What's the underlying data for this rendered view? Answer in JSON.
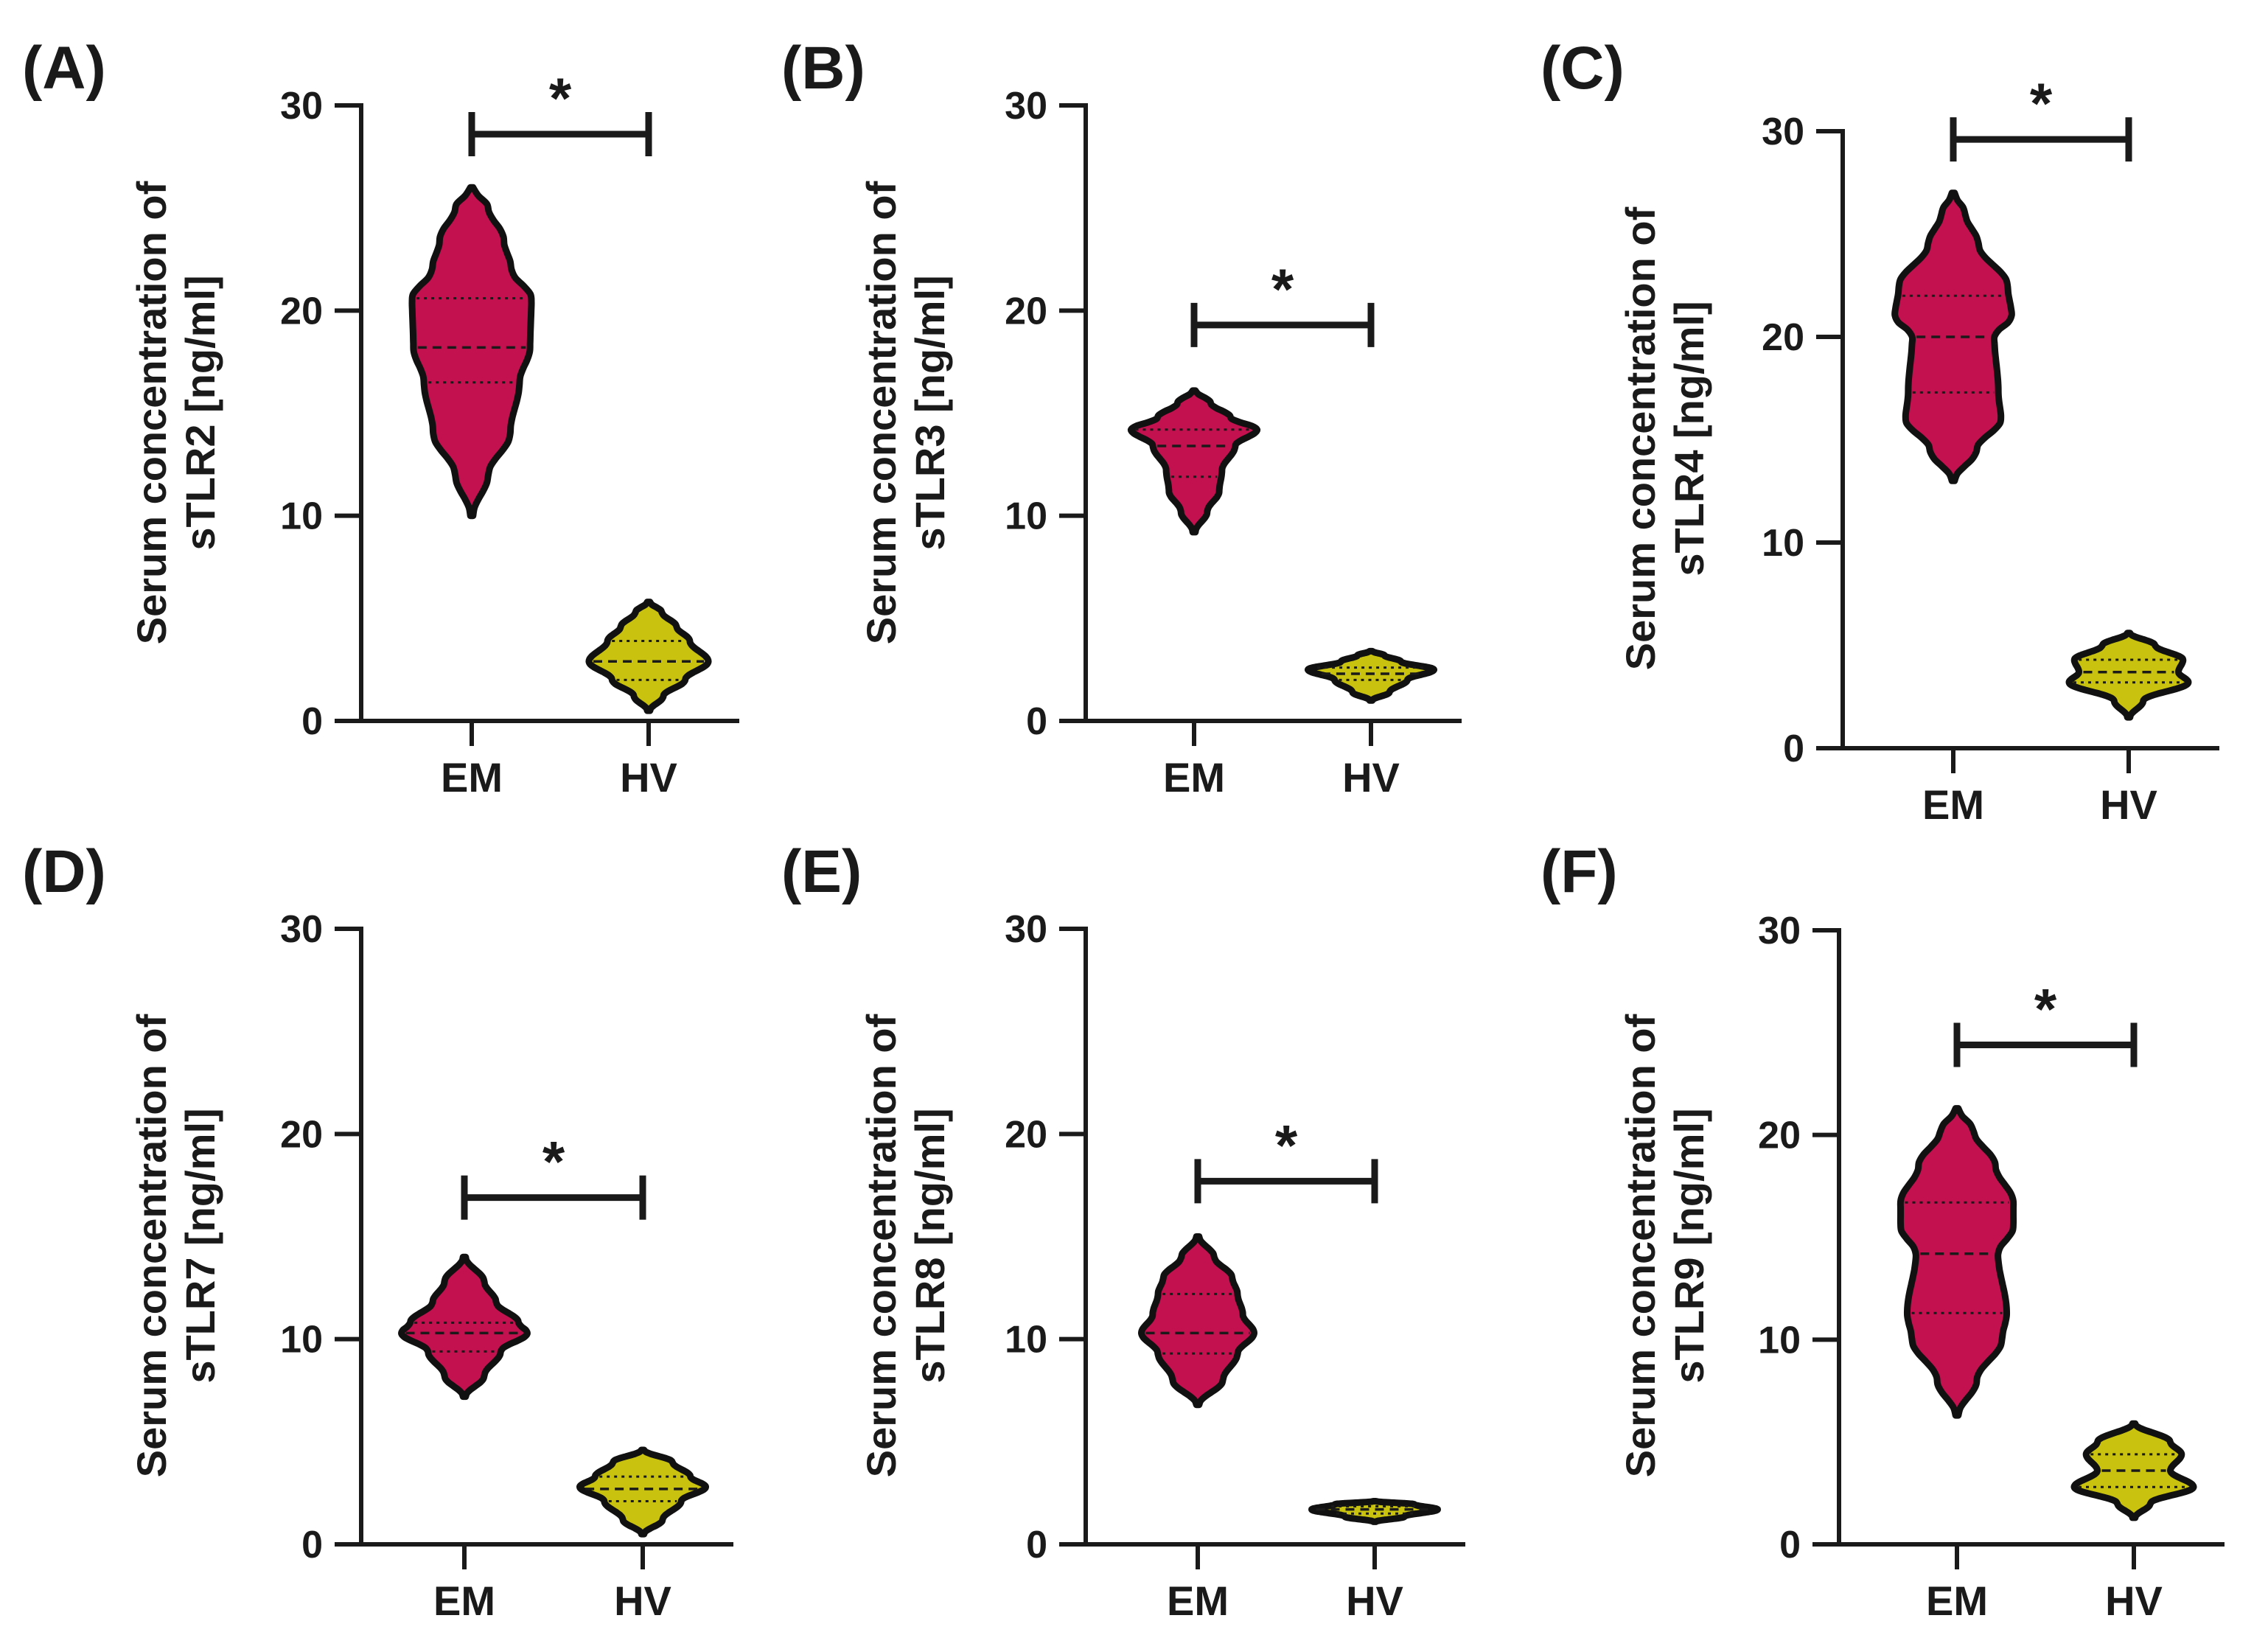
{
  "figure": {
    "colors": {
      "EM": "#C3104F",
      "HV": "#C9C30F",
      "ink": "#1a1a1a"
    }
  },
  "chart_data": [
    {
      "type": "violin",
      "panel_label": "(A)",
      "ylabel_line1": "Serum concentration of",
      "ylabel_line2": "sTLR2 [ng/ml]",
      "categories": [
        "EM",
        "HV"
      ],
      "ylim": [
        0,
        30
      ],
      "yticks": [
        0,
        10,
        20,
        30
      ],
      "series": [
        {
          "name": "EM",
          "min": 10,
          "max": 26,
          "q1": 16.5,
          "median": 18.2,
          "q3": 20.6,
          "shape": [
            [
              10,
              0.02
            ],
            [
              12,
              0.25
            ],
            [
              14,
              0.58
            ],
            [
              16.5,
              0.72
            ],
            [
              18.2,
              0.88
            ],
            [
              20.6,
              0.9
            ],
            [
              22,
              0.6
            ],
            [
              23.5,
              0.48
            ],
            [
              25,
              0.25
            ],
            [
              26,
              0.02
            ]
          ]
        },
        {
          "name": "HV",
          "min": 0.5,
          "max": 5.8,
          "q1": 2.0,
          "median": 2.9,
          "q3": 3.9,
          "shape": [
            [
              0.5,
              0.02
            ],
            [
              1.2,
              0.22
            ],
            [
              2.0,
              0.55
            ],
            [
              2.9,
              0.9
            ],
            [
              3.9,
              0.62
            ],
            [
              4.6,
              0.42
            ],
            [
              5.3,
              0.2
            ],
            [
              5.8,
              0.02
            ]
          ]
        }
      ],
      "significance": {
        "pair": [
          "EM",
          "HV"
        ],
        "y": 28.6,
        "label": "*"
      }
    },
    {
      "type": "violin",
      "panel_label": "(B)",
      "ylabel_line1": "Serum concentration of",
      "ylabel_line2": "sTLR3 [ng/ml]",
      "categories": [
        "EM",
        "HV"
      ],
      "ylim": [
        0,
        30
      ],
      "yticks": [
        0,
        10,
        20,
        30
      ],
      "series": [
        {
          "name": "EM",
          "min": 9.2,
          "max": 16.1,
          "q1": 11.9,
          "median": 13.4,
          "q3": 14.2,
          "shape": [
            [
              9.2,
              0.02
            ],
            [
              10.2,
              0.2
            ],
            [
              11.2,
              0.38
            ],
            [
              12.2,
              0.42
            ],
            [
              13.4,
              0.62
            ],
            [
              14.2,
              0.95
            ],
            [
              14.8,
              0.55
            ],
            [
              15.5,
              0.25
            ],
            [
              16.1,
              0.02
            ]
          ]
        },
        {
          "name": "HV",
          "min": 1.0,
          "max": 3.4,
          "q1": 2.0,
          "median": 2.3,
          "q3": 2.6,
          "shape": [
            [
              1.0,
              0.02
            ],
            [
              1.4,
              0.28
            ],
            [
              2.0,
              0.55
            ],
            [
              2.5,
              0.95
            ],
            [
              2.9,
              0.45
            ],
            [
              3.2,
              0.2
            ],
            [
              3.4,
              0.02
            ]
          ]
        }
      ],
      "significance": {
        "pair": [
          "EM",
          "HV"
        ],
        "y": 19.3,
        "label": "*"
      }
    },
    {
      "type": "violin",
      "panel_label": "(C)",
      "ylabel_line1": "Serum concentration of",
      "ylabel_line2": "sTLR4 [ng/ml]",
      "categories": [
        "EM",
        "HV"
      ],
      "ylim": [
        0,
        30
      ],
      "yticks": [
        0,
        10,
        20,
        30
      ],
      "series": [
        {
          "name": "EM",
          "min": 13,
          "max": 27,
          "q1": 17.3,
          "median": 20.0,
          "q3": 22.0,
          "shape": [
            [
              13,
              0.02
            ],
            [
              14.5,
              0.35
            ],
            [
              16,
              0.72
            ],
            [
              17.3,
              0.68
            ],
            [
              20,
              0.62
            ],
            [
              21,
              0.88
            ],
            [
              22.5,
              0.82
            ],
            [
              24.5,
              0.38
            ],
            [
              26,
              0.18
            ],
            [
              27,
              0.02
            ]
          ]
        },
        {
          "name": "HV",
          "min": 1.5,
          "max": 5.6,
          "q1": 3.2,
          "median": 3.7,
          "q3": 4.3,
          "shape": [
            [
              1.5,
              0.02
            ],
            [
              2.3,
              0.22
            ],
            [
              3.2,
              0.9
            ],
            [
              3.7,
              0.75
            ],
            [
              4.3,
              0.82
            ],
            [
              5.0,
              0.4
            ],
            [
              5.6,
              0.02
            ]
          ]
        }
      ],
      "significance": {
        "pair": [
          "EM",
          "HV"
        ],
        "y": 29.6,
        "label": "*"
      }
    },
    {
      "type": "violin",
      "panel_label": "(D)",
      "ylabel_line1": "Serum concentration of",
      "ylabel_line2": "sTLR7 [ng/ml]",
      "categories": [
        "EM",
        "HV"
      ],
      "ylim": [
        0,
        30
      ],
      "yticks": [
        0,
        10,
        20,
        30
      ],
      "series": [
        {
          "name": "EM",
          "min": 7.2,
          "max": 14,
          "q1": 9.4,
          "median": 10.3,
          "q3": 10.8,
          "shape": [
            [
              7.2,
              0.02
            ],
            [
              8.2,
              0.3
            ],
            [
              9.4,
              0.55
            ],
            [
              10.3,
              0.95
            ],
            [
              10.8,
              0.82
            ],
            [
              11.8,
              0.48
            ],
            [
              12.8,
              0.3
            ],
            [
              14,
              0.02
            ]
          ]
        },
        {
          "name": "HV",
          "min": 0.5,
          "max": 4.6,
          "q1": 2.1,
          "median": 2.7,
          "q3": 3.3,
          "shape": [
            [
              0.5,
              0.02
            ],
            [
              1.2,
              0.3
            ],
            [
              2.1,
              0.58
            ],
            [
              2.8,
              0.95
            ],
            [
              3.3,
              0.72
            ],
            [
              4.0,
              0.45
            ],
            [
              4.6,
              0.02
            ]
          ]
        }
      ],
      "significance": {
        "pair": [
          "EM",
          "HV"
        ],
        "y": 16.9,
        "label": "*"
      }
    },
    {
      "type": "violin",
      "panel_label": "(E)",
      "ylabel_line1": "Serum concentration of",
      "ylabel_line2": "sTLR8 [ng/ml]",
      "categories": [
        "EM",
        "HV"
      ],
      "ylim": [
        0,
        30
      ],
      "yticks": [
        0,
        10,
        20,
        30
      ],
      "series": [
        {
          "name": "EM",
          "min": 6.8,
          "max": 15,
          "q1": 9.3,
          "median": 10.3,
          "q3": 12.2,
          "shape": [
            [
              6.8,
              0.02
            ],
            [
              8,
              0.38
            ],
            [
              9.3,
              0.6
            ],
            [
              10.3,
              0.85
            ],
            [
              11.2,
              0.68
            ],
            [
              12.2,
              0.6
            ],
            [
              13,
              0.52
            ],
            [
              14,
              0.25
            ],
            [
              15,
              0.02
            ]
          ]
        },
        {
          "name": "HV",
          "min": 1.1,
          "max": 2.1,
          "q1": 1.5,
          "median": 1.7,
          "q3": 1.85,
          "shape": [
            [
              1.1,
              0.02
            ],
            [
              1.35,
              0.45
            ],
            [
              1.7,
              0.95
            ],
            [
              1.95,
              0.6
            ],
            [
              2.1,
              0.02
            ]
          ]
        }
      ],
      "significance": {
        "pair": [
          "EM",
          "HV"
        ],
        "y": 17.7,
        "label": "*"
      }
    },
    {
      "type": "violin",
      "panel_label": "(F)",
      "ylabel_line1": "Serum concentration of",
      "ylabel_line2": "sTLR9 [ng/ml]",
      "categories": [
        "EM",
        "HV"
      ],
      "ylim": [
        0,
        30
      ],
      "yticks": [
        0,
        10,
        20,
        30
      ],
      "series": [
        {
          "name": "EM",
          "min": 6.3,
          "max": 21.3,
          "q1": 11.3,
          "median": 14.2,
          "q3": 16.7,
          "shape": [
            [
              6.3,
              0.02
            ],
            [
              8,
              0.3
            ],
            [
              10,
              0.68
            ],
            [
              11.3,
              0.75
            ],
            [
              14.2,
              0.62
            ],
            [
              15.5,
              0.85
            ],
            [
              16.7,
              0.85
            ],
            [
              18.5,
              0.58
            ],
            [
              20.2,
              0.25
            ],
            [
              21.3,
              0.02
            ]
          ]
        },
        {
          "name": "HV",
          "min": 1.3,
          "max": 5.9,
          "q1": 2.8,
          "median": 3.6,
          "q3": 4.4,
          "shape": [
            [
              1.3,
              0.02
            ],
            [
              2.0,
              0.25
            ],
            [
              2.8,
              0.9
            ],
            [
              3.6,
              0.55
            ],
            [
              4.4,
              0.72
            ],
            [
              5.0,
              0.55
            ],
            [
              5.9,
              0.02
            ]
          ]
        }
      ],
      "significance": {
        "pair": [
          "EM",
          "HV"
        ],
        "y": 24.4,
        "label": "*"
      }
    }
  ]
}
